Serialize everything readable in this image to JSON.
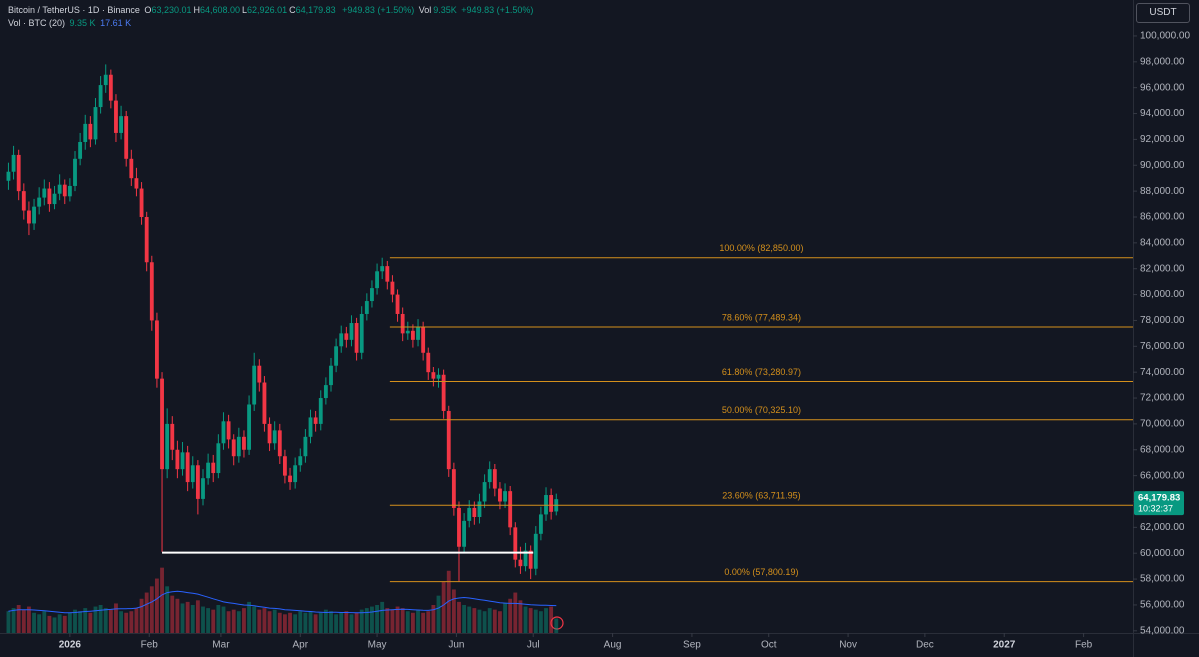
{
  "chart_data": {
    "type": "candlestick",
    "header": {
      "symbol": "Bitcoin / TetherUS · 1D · Binance",
      "ohlc": [
        {
          "key": "O",
          "value": "63,230.01"
        },
        {
          "key": "H",
          "value": "64,608.00"
        },
        {
          "key": "L",
          "value": "62,926.01"
        },
        {
          "key": "C",
          "value": "64,179.83"
        }
      ],
      "change": "+949.83 (+1.50%)",
      "vol_key": "Vol",
      "vol_value": "9.35K",
      "vol_change": "+949.83 (+1.50%)",
      "indicator": "Vol · BTC (20)",
      "indicator_volume": "9.35 K",
      "indicator_ma": "17.61 K"
    },
    "currency": "USDT",
    "up_color": "#089981",
    "down_color": "#f23645",
    "volume_ma_color": "#2962ff",
    "fib_color": "#d4901c",
    "hline_color": "#ffffff",
    "candles": {
      "x": [
        -24,
        -22,
        -20,
        -18,
        -16,
        -14,
        -12,
        -10,
        -8,
        -6,
        -4,
        -2,
        0,
        2,
        4,
        6,
        8,
        10,
        12,
        14,
        16,
        18,
        20,
        22,
        24,
        26,
        28,
        30,
        32,
        34,
        36,
        38,
        40,
        42,
        44,
        46,
        48,
        50,
        52,
        54,
        56,
        58,
        60,
        62,
        64,
        66,
        68,
        70,
        72,
        74,
        76,
        78,
        80,
        82,
        84,
        86,
        88,
        90,
        92,
        94,
        96,
        98,
        100,
        102,
        104,
        106,
        108,
        110,
        112,
        114,
        116,
        118,
        120,
        122,
        124,
        126,
        128,
        130,
        132,
        134,
        136,
        138,
        140,
        142,
        144,
        146,
        148,
        150,
        152,
        154,
        156,
        158,
        160,
        162,
        164,
        166,
        168,
        170,
        172,
        174,
        176,
        178,
        180,
        182,
        184,
        186,
        188,
        190
      ],
      "open": [
        88800,
        89500,
        90800,
        88000,
        86500,
        85500,
        86800,
        87500,
        88200,
        87000,
        87800,
        88500,
        87600,
        88400,
        90500,
        91800,
        93200,
        92000,
        94500,
        96200,
        97000,
        95000,
        92500,
        93800,
        90500,
        89000,
        88200,
        86000,
        82500,
        78000,
        73500,
        66500,
        70000,
        68000,
        66500,
        67800,
        65500,
        66800,
        64200,
        65800,
        67000,
        66200,
        68500,
        70200,
        68800,
        67500,
        69000,
        68000,
        71500,
        74500,
        73200,
        70000,
        68500,
        69500,
        67500,
        66000,
        65500,
        66800,
        67500,
        69000,
        70500,
        70000,
        72000,
        73000,
        74500,
        76000,
        77000,
        76500,
        77800,
        75500,
        78500,
        79500,
        80500,
        81800,
        82200,
        81000,
        80000,
        78500,
        77000,
        77200,
        76500,
        77500,
        75500,
        74000,
        73500,
        73800,
        71000,
        66500,
        63500,
        60500,
        62500,
        63500,
        62800,
        64000,
        65500,
        66500,
        65000,
        64000,
        64800,
        62000,
        59500,
        59000,
        60200,
        58800,
        61500,
        63000,
        64500,
        63230.01
      ],
      "high": [
        90200,
        91500,
        91200,
        88600,
        87200,
        87400,
        88300,
        88900,
        88700,
        88400,
        89300,
        88900,
        89000,
        91100,
        92500,
        93900,
        93800,
        95200,
        96900,
        97800,
        97400,
        95500,
        94600,
        94200,
        91200,
        89800,
        88700,
        86400,
        83000,
        78600,
        74000,
        71200,
        70600,
        68700,
        68600,
        68300,
        67500,
        67200,
        66500,
        67700,
        67600,
        69200,
        70900,
        70700,
        69200,
        69700,
        69500,
        72200,
        75500,
        75000,
        73700,
        70500,
        70200,
        70000,
        68000,
        66600,
        67400,
        68100,
        69600,
        71100,
        71000,
        72600,
        73600,
        75100,
        76600,
        77600,
        77500,
        78400,
        78200,
        79100,
        80100,
        81100,
        82400,
        82850,
        82600,
        81500,
        80400,
        79000,
        77900,
        77700,
        78100,
        77900,
        75900,
        74400,
        74300,
        74200,
        71400,
        67000,
        64000,
        63100,
        64100,
        64000,
        64600,
        66100,
        67100,
        66900,
        65500,
        65400,
        65200,
        62400,
        60500,
        60800,
        60600,
        62100,
        63600,
        65100,
        65000,
        64608
      ],
      "low": [
        88100,
        88900,
        87300,
        85800,
        84600,
        85000,
        86200,
        86900,
        86400,
        86600,
        87300,
        87000,
        87200,
        88000,
        90000,
        91200,
        91400,
        91600,
        94000,
        95600,
        94400,
        91800,
        92000,
        89900,
        88400,
        87600,
        85400,
        81800,
        77200,
        72800,
        60100,
        65800,
        67200,
        65800,
        66000,
        64800,
        65000,
        63000,
        63700,
        65300,
        65500,
        65800,
        68000,
        68100,
        66800,
        67000,
        67400,
        67600,
        71000,
        72500,
        69400,
        67900,
        68000,
        66900,
        65400,
        64900,
        65000,
        66300,
        67000,
        68500,
        69400,
        69500,
        71500,
        72500,
        74000,
        75500,
        75900,
        76000,
        74900,
        75000,
        78000,
        79000,
        80000,
        81200,
        80400,
        79400,
        77900,
        76400,
        76500,
        75900,
        76000,
        74900,
        73400,
        72900,
        72800,
        70400,
        65900,
        62900,
        57800.19,
        60000,
        62000,
        62200,
        62300,
        63500,
        65000,
        64400,
        63400,
        63500,
        61400,
        58900,
        58400,
        58600,
        58000,
        58300,
        61000,
        62500,
        62600,
        62926.01
      ],
      "close": [
        89500,
        90800,
        88000,
        86500,
        85500,
        86800,
        87500,
        88200,
        87000,
        87800,
        88500,
        87600,
        88400,
        90500,
        91800,
        93200,
        92000,
        94500,
        96200,
        97000,
        95000,
        92500,
        93800,
        90500,
        89000,
        88200,
        86000,
        82500,
        78000,
        73500,
        66500,
        70000,
        68000,
        66500,
        67800,
        65500,
        66800,
        64200,
        65800,
        67000,
        66200,
        68500,
        70200,
        68800,
        67500,
        69000,
        68000,
        71500,
        74500,
        73200,
        70000,
        68500,
        69500,
        67500,
        66000,
        65500,
        66800,
        67500,
        69000,
        70500,
        70000,
        72000,
        73000,
        74500,
        76000,
        77000,
        76500,
        77800,
        75500,
        78500,
        79500,
        80500,
        81800,
        82200,
        81000,
        80000,
        78500,
        77000,
        77200,
        76500,
        77500,
        75500,
        74000,
        73500,
        73800,
        71000,
        66500,
        63500,
        60500,
        62500,
        63500,
        62800,
        64000,
        65500,
        66500,
        65000,
        64000,
        64800,
        62000,
        59500,
        59000,
        60200,
        58800,
        61500,
        63000,
        64500,
        63200,
        64179.83
      ]
    },
    "volume": [
      14,
      16,
      18,
      15,
      17,
      13,
      12,
      14,
      11,
      10,
      12,
      11,
      13,
      15,
      14,
      16,
      13,
      17,
      18,
      16,
      15,
      19,
      14,
      13,
      14,
      16,
      22,
      26,
      30,
      35,
      42,
      30,
      24,
      22,
      19,
      20,
      18,
      21,
      17,
      16,
      15,
      18,
      17,
      14,
      15,
      14,
      16,
      20,
      17,
      15,
      16,
      14,
      15,
      13,
      12,
      13,
      12,
      14,
      13,
      14,
      12,
      13,
      15,
      14,
      12,
      13,
      14,
      12,
      13,
      15,
      16,
      17,
      18,
      20,
      16,
      15,
      17,
      16,
      14,
      13,
      15,
      13,
      14,
      18,
      24,
      33,
      40,
      28,
      20,
      18,
      17,
      16,
      15,
      14,
      16,
      15,
      14,
      19,
      22,
      26,
      21,
      17,
      16,
      15,
      14,
      16,
      17,
      9.35
    ],
    "volume_ma": [
      14,
      14.5,
      15,
      15,
      15,
      14.8,
      14.5,
      14.3,
      14,
      13.6,
      13.3,
      13,
      13,
      13.2,
      13.5,
      13.8,
      14,
      14.3,
      14.6,
      15,
      15.2,
      15.5,
      15.6,
      15.6,
      15.7,
      16,
      17,
      18.5,
      20,
      22,
      24.5,
      26,
      26.5,
      26.8,
      26.5,
      26,
      25.5,
      25,
      24,
      23,
      22,
      21,
      20,
      19.5,
      19,
      18.5,
      18,
      17.8,
      17.5,
      17,
      16.5,
      16,
      15.8,
      15.5,
      15,
      14.8,
      14.5,
      14.3,
      14,
      13.8,
      13.5,
      13.3,
      13.2,
      13.3,
      13.3,
      13.2,
      13.2,
      13.1,
      13,
      13,
      13.2,
      13.5,
      14,
      14.5,
      14.8,
      15,
      15.2,
      15.3,
      15.2,
      15,
      14.8,
      14.6,
      14.5,
      15,
      16,
      18,
      20.5,
      22,
      22.5,
      22.8,
      22.5,
      22,
      21.5,
      21,
      20.5,
      20,
      19.5,
      19.2,
      19,
      19,
      18.8,
      18.5,
      18.2,
      18,
      17.9,
      17.8,
      17.7,
      17.61
    ],
    "volume_ylim": [
      0,
      45
    ],
    "fib": {
      "start": 125,
      "levels": [
        {
          "value": 82850,
          "label": "100.00% (82,850.00)"
        },
        {
          "value": 77489.34,
          "label": "78.60% (77,489.34)"
        },
        {
          "value": 73280.97,
          "label": "61.80% (73,280.97)"
        },
        {
          "value": 70325.1,
          "label": "50.00% (70,325.10)"
        },
        {
          "value": 63711.95,
          "label": "23.60% (63,711.95)"
        },
        {
          "value": 57800.19,
          "label": "0.00% (57,800.19)"
        }
      ]
    },
    "hline": {
      "value": 60050,
      "from": 36,
      "to": 181
    },
    "price_tag": {
      "value": 64179.83,
      "label": "64,179.83",
      "countdown": "10:32:37"
    },
    "xlim": [
      -27.3,
      415.3
    ],
    "xticks": [
      {
        "value": 0,
        "label": "2026"
      },
      {
        "value": 31,
        "label": "Feb"
      },
      {
        "value": 59,
        "label": "Mar"
      },
      {
        "value": 90,
        "label": "Apr"
      },
      {
        "value": 120,
        "label": "May"
      },
      {
        "value": 151,
        "label": "Jun"
      },
      {
        "value": 181,
        "label": "Jul"
      },
      {
        "value": 212,
        "label": "Aug"
      },
      {
        "value": 243,
        "label": "Sep"
      },
      {
        "value": 273,
        "label": "Oct"
      },
      {
        "value": 304,
        "label": "Nov"
      },
      {
        "value": 334,
        "label": "Dec"
      },
      {
        "value": 365,
        "label": "2027"
      },
      {
        "value": 396,
        "label": "Feb"
      }
    ],
    "ylim": [
      53830,
      102780
    ],
    "yticks": [
      {
        "value": 100000,
        "label": "100,000.00"
      },
      {
        "value": 98000,
        "label": "98,000.00"
      },
      {
        "value": 96000,
        "label": "96,000.00"
      },
      {
        "value": 94000,
        "label": "94,000.00"
      },
      {
        "value": 92000,
        "label": "92,000.00"
      },
      {
        "value": 90000,
        "label": "90,000.00"
      },
      {
        "value": 88000,
        "label": "88,000.00"
      },
      {
        "value": 86000,
        "label": "86,000.00"
      },
      {
        "value": 84000,
        "label": "84,000.00"
      },
      {
        "value": 82000,
        "label": "82,000.00"
      },
      {
        "value": 80000,
        "label": "80,000.00"
      },
      {
        "value": 78000,
        "label": "78,000.00"
      },
      {
        "value": 76000,
        "label": "76,000.00"
      },
      {
        "value": 74000,
        "label": "74,000.00"
      },
      {
        "value": 72000,
        "label": "72,000.00"
      },
      {
        "value": 70000,
        "label": "70,000.00"
      },
      {
        "value": 68000,
        "label": "68,000.00"
      },
      {
        "value": 66000,
        "label": "66,000.00"
      },
      {
        "value": 64000,
        "label": "64,000.00"
      },
      {
        "value": 62000,
        "label": "62,000.00"
      },
      {
        "value": 60000,
        "label": "60,000.00"
      },
      {
        "value": 58000,
        "label": "58,000.00"
      },
      {
        "value": 56000,
        "label": "56,000.00"
      },
      {
        "value": 54000,
        "label": "54,000.00"
      }
    ]
  }
}
